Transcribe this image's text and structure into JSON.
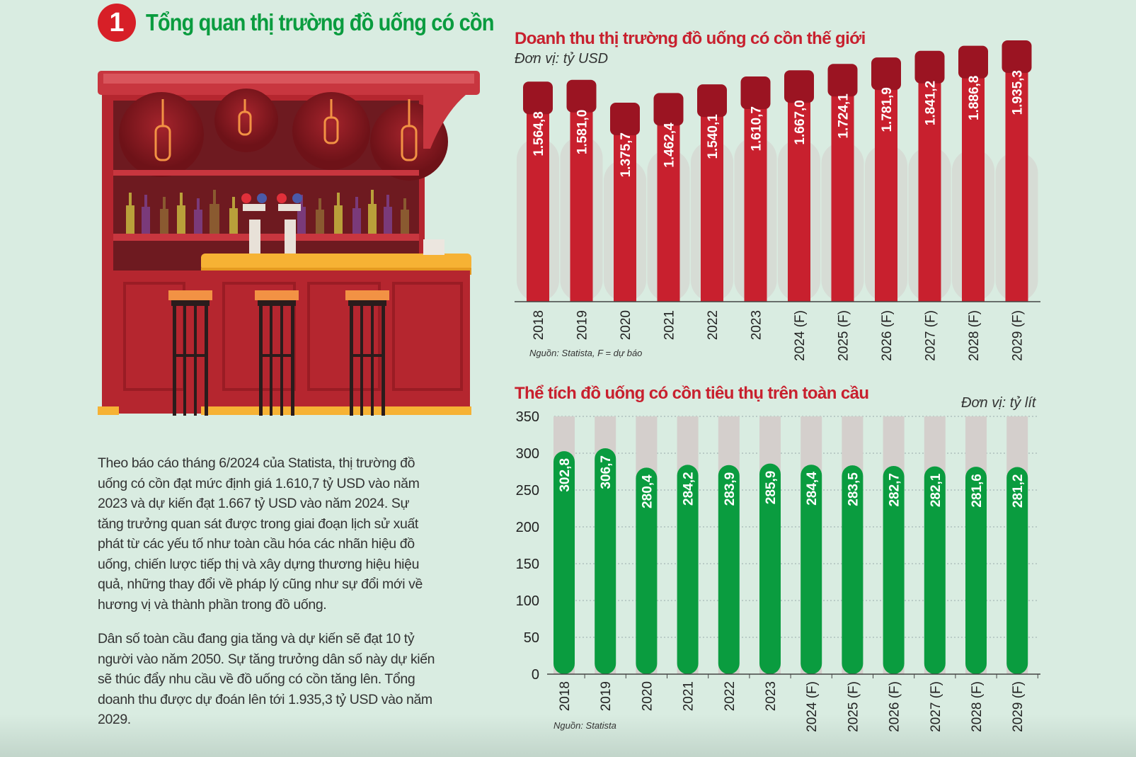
{
  "section": {
    "number": "1",
    "title": "Tổng quan thị trường đồ uống có cồn"
  },
  "illustration": {
    "description_icon": "bar-counter-illustration"
  },
  "paragraphs": [
    "Theo báo cáo tháng 6/2024 của Statista, thị trường đồ uống có cồn đạt mức định giá 1.610,7 tỷ USD vào năm 2023 và dự kiến đạt 1.667 tỷ USD vào năm 2024. Sự tăng trưởng quan sát được trong giai đoạn lịch sử xuất phát từ các yếu tố như toàn cầu hóa các nhãn hiệu đồ uống, chiến lược tiếp thị và xây dựng thương hiệu hiệu quả, những thay đổi về pháp lý cũng như sự đổi mới về hương vị và thành phần trong đồ uống.",
    "Dân số toàn cầu đang gia tăng và dự kiến sẽ đạt 10 tỷ người vào năm 2050. Sự tăng trưởng dân số này dự kiến sẽ thúc đẩy nhu cầu về đồ uống có cồn tăng lên. Tổng doanh thu được dự đoán lên tới 1.935,3 tỷ USD vào năm 2029."
  ],
  "colors": {
    "red_bar": "#c8202e",
    "red_cap": "#9b1422",
    "green_bar": "#0a9c3f",
    "track": "#d4cfcc"
  },
  "chart_data": [
    {
      "type": "bar",
      "title": "Doanh thu thị trường đồ uống có cồn thế giới",
      "unit": "Đơn vị: tỷ USD",
      "source": "Nguồn: Statista, F = dự báo",
      "categories": [
        "2018",
        "2019",
        "2020",
        "2021",
        "2022",
        "2023",
        "2024 (F)",
        "2025 (F)",
        "2026 (F)",
        "2027 (F)",
        "2028 (F)",
        "2029 (F)"
      ],
      "values": [
        1564.8,
        1581.0,
        1375.7,
        1462.4,
        1540.1,
        1610.7,
        1667.0,
        1724.1,
        1781.9,
        1841.2,
        1886.8,
        1935.3
      ],
      "value_labels": [
        "1.564,8",
        "1.581,0",
        "1.375,7",
        "1.462,4",
        "1.540,1",
        "1.610,7",
        "1.667,0",
        "1.724,1",
        "1.781,9",
        "1.841,2",
        "1.886,8",
        "1.935,3"
      ],
      "grid": false
    },
    {
      "type": "bar",
      "title": "Thể tích đồ uống có cồn tiêu thụ trên toàn cầu",
      "unit": "Đơn vị: tỷ lít",
      "source": "Nguồn: Statista",
      "categories": [
        "2018",
        "2019",
        "2020",
        "2021",
        "2022",
        "2023",
        "2024 (F)",
        "2025 (F)",
        "2026 (F)",
        "2027 (F)",
        "2028 (F)",
        "2029 (F)"
      ],
      "values": [
        302.8,
        306.7,
        280.4,
        284.2,
        283.9,
        285.9,
        284.4,
        283.5,
        282.7,
        282.1,
        281.6,
        281.2
      ],
      "value_labels": [
        "302,8",
        "306,7",
        "280,4",
        "284,2",
        "283,9",
        "285,9",
        "284,4",
        "283,5",
        "282,7",
        "282,1",
        "281,6",
        "281,2"
      ],
      "ylim": [
        0,
        350
      ],
      "yticks": [
        "0",
        "50",
        "100",
        "150",
        "200",
        "250",
        "300",
        "350"
      ],
      "grid": true
    }
  ]
}
